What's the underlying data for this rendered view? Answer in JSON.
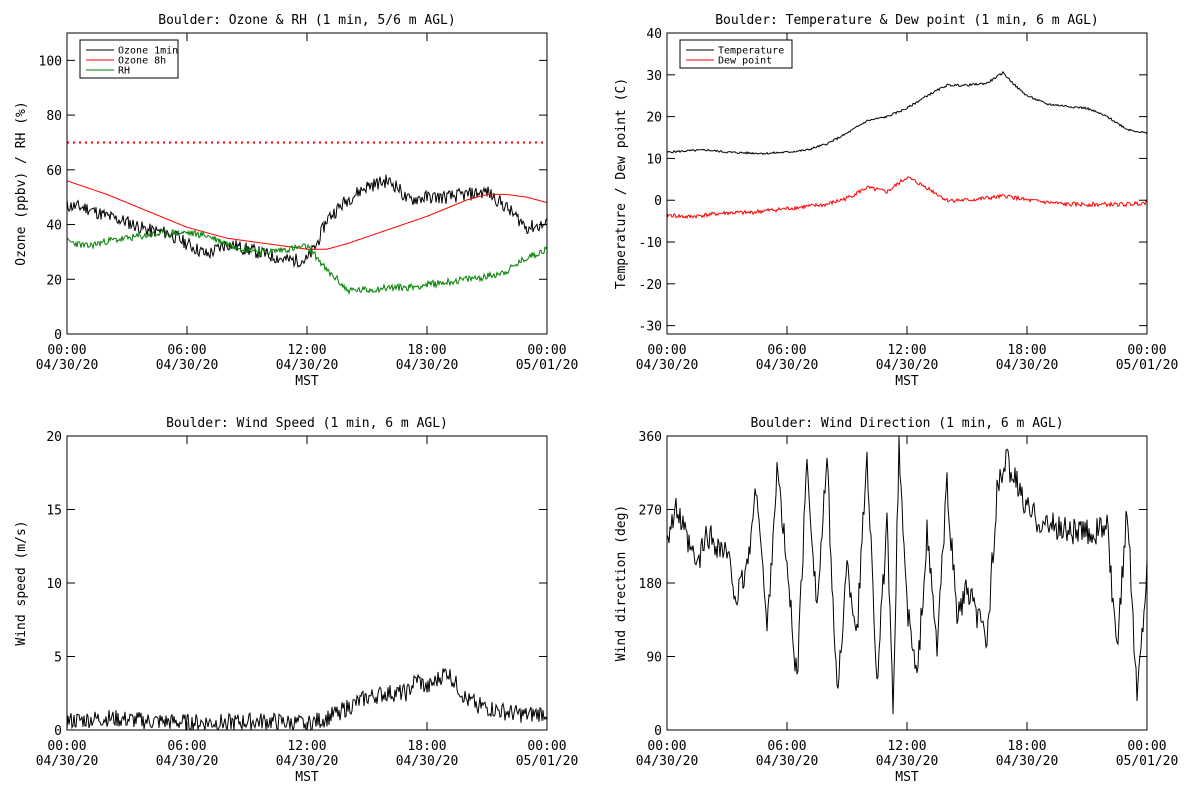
{
  "chart_data": [
    {
      "id": "ozone-rh",
      "type": "line",
      "title": "Boulder: Ozone & RH (1 min, 5/6 m AGL)",
      "xlabel": "MST",
      "ylabel": "Ozone (ppbv) / RH (%)",
      "ylim": [
        0,
        110
      ],
      "yticks": [
        0,
        20,
        40,
        60,
        80,
        100
      ],
      "xlim": [
        0,
        24
      ],
      "xticks": [
        {
          "time": "00:00",
          "date": "04/30/20"
        },
        {
          "time": "06:00",
          "date": "04/30/20"
        },
        {
          "time": "12:00",
          "date": "04/30/20"
        },
        {
          "time": "18:00",
          "date": "04/30/20"
        },
        {
          "time": "00:00",
          "date": "05/01/20"
        }
      ],
      "grid": false,
      "legend_position": "top-left",
      "reference_line": {
        "y": 70,
        "color": "#ff0000",
        "style": "dotted"
      },
      "series": [
        {
          "name": "Ozone 1min",
          "color": "#000000",
          "noise": 2.5,
          "seed": 11,
          "points": [
            [
              0,
              47
            ],
            [
              1,
              46
            ],
            [
              2,
              43
            ],
            [
              3,
              41
            ],
            [
              4,
              38
            ],
            [
              5,
              37
            ],
            [
              6,
              33
            ],
            [
              7,
              29
            ],
            [
              8,
              33
            ],
            [
              9,
              31
            ],
            [
              10,
              29
            ],
            [
              11,
              27
            ],
            [
              12,
              27
            ],
            [
              12.5,
              33
            ],
            [
              13,
              42
            ],
            [
              14,
              49
            ],
            [
              15,
              54
            ],
            [
              16,
              56
            ],
            [
              16.5,
              54
            ],
            [
              17,
              49
            ],
            [
              18,
              50
            ],
            [
              19,
              50
            ],
            [
              20,
              51
            ],
            [
              21,
              52
            ],
            [
              21.7,
              48
            ],
            [
              22,
              46
            ],
            [
              23,
              39
            ],
            [
              24,
              40
            ]
          ]
        },
        {
          "name": "Ozone 8h",
          "color": "#ff0000",
          "noise": 0,
          "seed": 0,
          "points": [
            [
              0,
              56
            ],
            [
              2,
              51
            ],
            [
              4,
              45
            ],
            [
              6,
              39
            ],
            [
              8,
              35
            ],
            [
              10,
              33
            ],
            [
              12,
              31
            ],
            [
              13,
              31
            ],
            [
              14,
              33
            ],
            [
              16,
              38
            ],
            [
              18,
              43
            ],
            [
              20,
              49
            ],
            [
              21,
              51
            ],
            [
              22,
              51
            ],
            [
              23,
              50
            ],
            [
              24,
              48
            ]
          ]
        },
        {
          "name": "RH",
          "color": "#008000",
          "noise": 1.3,
          "seed": 23,
          "points": [
            [
              0,
              34
            ],
            [
              1,
              32
            ],
            [
              2,
              34
            ],
            [
              3,
              35
            ],
            [
              4,
              36
            ],
            [
              5,
              37
            ],
            [
              6,
              37
            ],
            [
              7,
              36
            ],
            [
              8,
              33
            ],
            [
              9,
              31
            ],
            [
              10,
              30
            ],
            [
              11,
              31
            ],
            [
              12,
              32
            ],
            [
              12.5,
              28
            ],
            [
              13,
              23
            ],
            [
              13.5,
              20
            ],
            [
              14,
              16
            ],
            [
              15,
              16
            ],
            [
              16,
              17
            ],
            [
              17,
              17
            ],
            [
              18,
              18
            ],
            [
              19,
              19
            ],
            [
              20,
              20
            ],
            [
              21,
              21
            ],
            [
              22,
              23
            ],
            [
              23,
              28
            ],
            [
              24,
              31
            ]
          ]
        }
      ]
    },
    {
      "id": "temp-dew",
      "type": "line",
      "title": "Boulder: Temperature & Dew point (1 min, 6 m AGL)",
      "xlabel": "MST",
      "ylabel": "Temperature / Dew point (C)",
      "ylim": [
        -32,
        40
      ],
      "yticks": [
        -30,
        -20,
        -10,
        0,
        10,
        20,
        30,
        40
      ],
      "xlim": [
        0,
        24
      ],
      "xticks": [
        {
          "time": "00:00",
          "date": "04/30/20"
        },
        {
          "time": "06:00",
          "date": "04/30/20"
        },
        {
          "time": "12:00",
          "date": "04/30/20"
        },
        {
          "time": "18:00",
          "date": "04/30/20"
        },
        {
          "time": "00:00",
          "date": "05/01/20"
        }
      ],
      "grid": false,
      "legend_position": "top-left",
      "series": [
        {
          "name": "Temperature",
          "color": "#000000",
          "noise": 0.25,
          "seed": 5,
          "points": [
            [
              0,
              11.5
            ],
            [
              1,
              11.8
            ],
            [
              2,
              12
            ],
            [
              3,
              11.5
            ],
            [
              4,
              11.3
            ],
            [
              5,
              11.2
            ],
            [
              6,
              11.5
            ],
            [
              7,
              12
            ],
            [
              8,
              13.5
            ],
            [
              9,
              16
            ],
            [
              10,
              19
            ],
            [
              11,
              20
            ],
            [
              12,
              22
            ],
            [
              13,
              25
            ],
            [
              14,
              27.5
            ],
            [
              15,
              27.5
            ],
            [
              16,
              28
            ],
            [
              16.8,
              30.5
            ],
            [
              17.5,
              27
            ],
            [
              18,
              25
            ],
            [
              19,
              23
            ],
            [
              20,
              22.5
            ],
            [
              21,
              22
            ],
            [
              22,
              20
            ],
            [
              23,
              17
            ],
            [
              24,
              16
            ]
          ]
        },
        {
          "name": "Dew point",
          "color": "#ff0000",
          "noise": 0.5,
          "seed": 41,
          "points": [
            [
              0,
              -3.5
            ],
            [
              1,
              -4
            ],
            [
              2,
              -3.5
            ],
            [
              3,
              -3
            ],
            [
              4,
              -3
            ],
            [
              5,
              -2.5
            ],
            [
              6,
              -2
            ],
            [
              7,
              -1.5
            ],
            [
              8,
              -1
            ],
            [
              9,
              0.5
            ],
            [
              10,
              3
            ],
            [
              11,
              2
            ],
            [
              12,
              5.5
            ],
            [
              13,
              3
            ],
            [
              14,
              0
            ],
            [
              15,
              0
            ],
            [
              16,
              0.5
            ],
            [
              17,
              1
            ],
            [
              18,
              0
            ],
            [
              19,
              -0.5
            ],
            [
              20,
              -1
            ],
            [
              21,
              -1
            ],
            [
              22,
              -1
            ],
            [
              23,
              -1
            ],
            [
              24,
              -0.5
            ]
          ]
        }
      ]
    },
    {
      "id": "wind-speed",
      "type": "line",
      "title": "Boulder: Wind Speed (1 min, 6 m AGL)",
      "xlabel": "MST",
      "ylabel": "Wind speed (m/s)",
      "ylim": [
        0,
        20
      ],
      "yticks": [
        0,
        5,
        10,
        15,
        20
      ],
      "xlim": [
        0,
        24
      ],
      "xticks": [
        {
          "time": "00:00",
          "date": "04/30/20"
        },
        {
          "time": "06:00",
          "date": "04/30/20"
        },
        {
          "time": "12:00",
          "date": "04/30/20"
        },
        {
          "time": "18:00",
          "date": "04/30/20"
        },
        {
          "time": "00:00",
          "date": "05/01/20"
        }
      ],
      "grid": false,
      "series": [
        {
          "name": "",
          "color": "#000000",
          "noise": 0.6,
          "seed": 77,
          "floor": 0,
          "points": [
            [
              0,
              0.6
            ],
            [
              2,
              0.8
            ],
            [
              4,
              0.6
            ],
            [
              6,
              0.5
            ],
            [
              8,
              0.5
            ],
            [
              10,
              0.6
            ],
            [
              12,
              0.4
            ],
            [
              13,
              0.8
            ],
            [
              14,
              1.5
            ],
            [
              15,
              2.2
            ],
            [
              16,
              2.5
            ],
            [
              17,
              2.5
            ],
            [
              17.5,
              3.5
            ],
            [
              18,
              2.8
            ],
            [
              19,
              4
            ],
            [
              19.5,
              3
            ],
            [
              20,
              2
            ],
            [
              21,
              1.5
            ],
            [
              22,
              1.2
            ],
            [
              23,
              1
            ],
            [
              24,
              1.2
            ]
          ]
        }
      ]
    },
    {
      "id": "wind-direction",
      "type": "line",
      "title": "Boulder: Wind Direction (1 min, 6 m AGL)",
      "xlabel": "MST",
      "ylabel": "Wind direction (deg)",
      "ylim": [
        0,
        360
      ],
      "yticks": [
        0,
        90,
        180,
        270,
        360
      ],
      "xlim": [
        0,
        24
      ],
      "xticks": [
        {
          "time": "00:00",
          "date": "04/30/20"
        },
        {
          "time": "06:00",
          "date": "04/30/20"
        },
        {
          "time": "12:00",
          "date": "04/30/20"
        },
        {
          "time": "18:00",
          "date": "04/30/20"
        },
        {
          "time": "00:00",
          "date": "05/01/20"
        }
      ],
      "grid": false,
      "series": [
        {
          "name": "",
          "color": "#000000",
          "noise": 18,
          "seed": 99,
          "floor": 0,
          "ceil": 360,
          "points": [
            [
              0,
              240
            ],
            [
              0.5,
              270
            ],
            [
              1,
              230
            ],
            [
              1.5,
              200
            ],
            [
              2,
              240
            ],
            [
              3,
              215
            ],
            [
              3.5,
              160
            ],
            [
              4,
              200
            ],
            [
              4.5,
              300
            ],
            [
              5,
              120
            ],
            [
              5.5,
              320
            ],
            [
              6,
              200
            ],
            [
              6.5,
              60
            ],
            [
              7,
              330
            ],
            [
              7.5,
              150
            ],
            [
              8,
              330
            ],
            [
              8.5,
              40
            ],
            [
              9,
              200
            ],
            [
              9.5,
              120
            ],
            [
              10,
              340
            ],
            [
              10.5,
              60
            ],
            [
              11,
              250
            ],
            [
              11.3,
              20
            ],
            [
              11.6,
              350
            ],
            [
              12,
              150
            ],
            [
              12.5,
              60
            ],
            [
              13,
              240
            ],
            [
              13.5,
              100
            ],
            [
              14,
              300
            ],
            [
              14.5,
              140
            ],
            [
              15,
              170
            ],
            [
              16,
              110
            ],
            [
              16.5,
              290
            ],
            [
              17,
              330
            ],
            [
              17.5,
              300
            ],
            [
              18,
              270
            ],
            [
              19,
              250
            ],
            [
              20,
              245
            ],
            [
              21,
              240
            ],
            [
              22,
              250
            ],
            [
              22.5,
              90
            ],
            [
              23,
              280
            ],
            [
              23.5,
              40
            ],
            [
              24,
              200
            ]
          ]
        }
      ]
    }
  ]
}
